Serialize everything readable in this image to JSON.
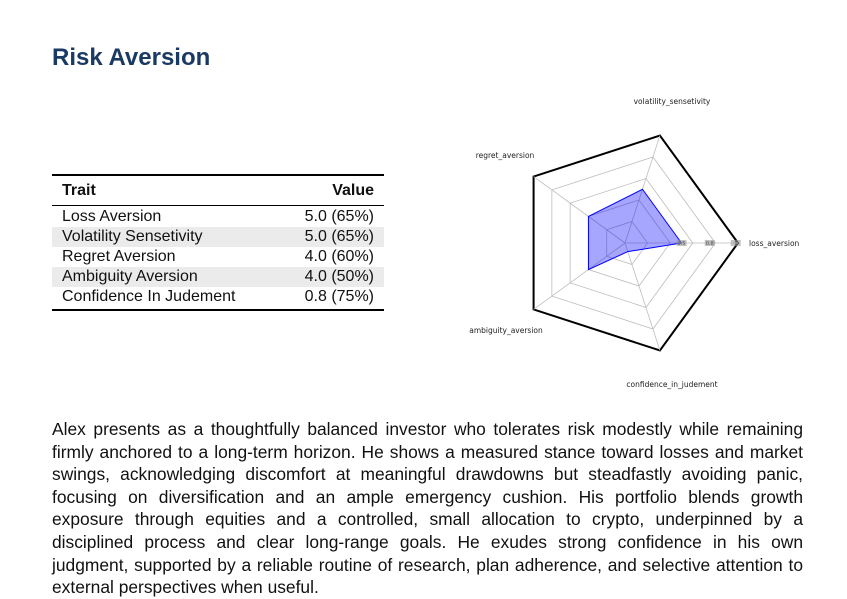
{
  "title": "Risk Aversion",
  "table": {
    "headers": {
      "trait": "Trait",
      "value": "Value"
    },
    "rows": [
      {
        "trait": "Loss Aversion",
        "value": "5.0 (65%)"
      },
      {
        "trait": "Volatility Sensetivity",
        "value": "5.0 (65%)"
      },
      {
        "trait": "Regret Aversion",
        "value": "4.0 (60%)"
      },
      {
        "trait": "Ambiguity Aversion",
        "value": "4.0 (50%)"
      },
      {
        "trait": "Confidence In Judement",
        "value": "0.8 (75%)"
      }
    ]
  },
  "chart_data": {
    "type": "radar",
    "axes": [
      "loss_aversion",
      "volatility_sensetivity",
      "regret_aversion",
      "ambiguity_aversion",
      "confidence_in_judement"
    ],
    "series": [
      {
        "values": [
          0.5,
          0.5,
          0.4,
          0.4,
          0.08
        ]
      }
    ],
    "ring_count": 5,
    "tick_labels": [
      "0.5",
      "0.8",
      "1"
    ],
    "fill_color": "#0000ff",
    "fill_opacity": 0.35,
    "outer_border_color": "#000000"
  },
  "description": "Alex presents as a thoughtfully balanced investor who tolerates risk modestly while remaining firmly anchored to a long-term horizon. He shows a measured stance toward losses and market swings, acknowledging discomfort at meaningful drawdowns but steadfastly avoiding panic, focusing on diversification and an ample emergency cushion. His portfolio blends growth exposure through equities and a controlled, small allocation to crypto, underpinned by a disciplined process and clear long-range goals. He exudes strong confidence in his own judgment, supported by a reliable routine of research, plan adherence, and selective attention to external perspectives when useful."
}
